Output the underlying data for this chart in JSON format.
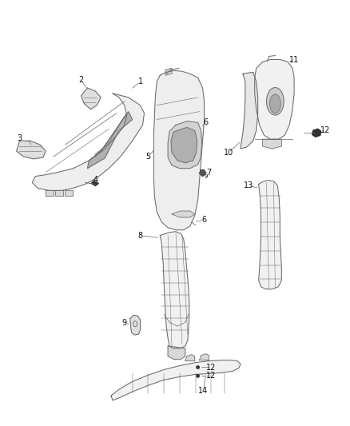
{
  "background_color": "#ffffff",
  "line_color": "#666666",
  "label_color": "#111111",
  "figsize": [
    4.38,
    5.33
  ],
  "dpi": 100,
  "label_fontsize": 7.0
}
